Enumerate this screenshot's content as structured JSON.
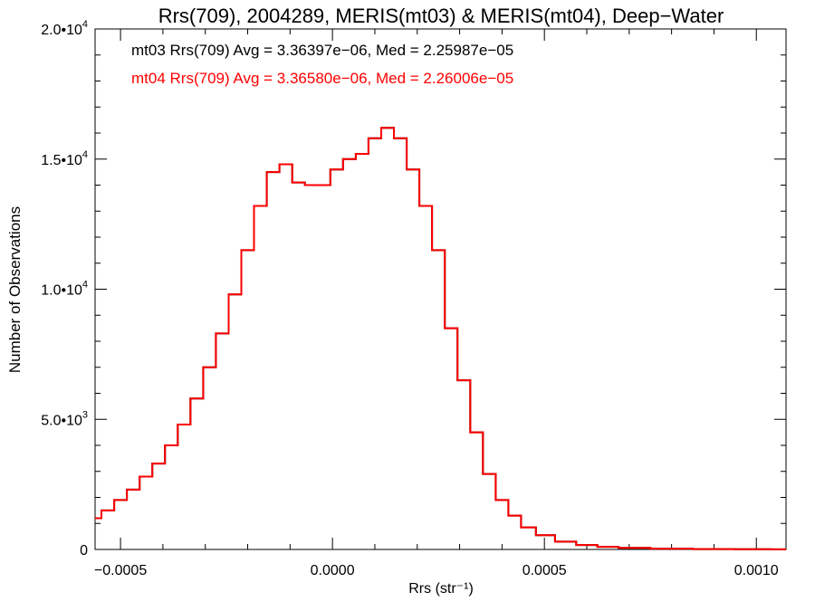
{
  "chart_data": {
    "type": "line",
    "style": "step-histogram",
    "title": "Rrs(709), 2004289, MERIS(mt03) & MERIS(mt04), Deep−Water",
    "xlabel": "Rrs (str⁻¹)",
    "ylabel": "Number of Observations",
    "xlim": [
      -0.00056,
      0.00107
    ],
    "ylim": [
      0,
      20000
    ],
    "x_ticks": [
      -0.0005,
      0.0,
      0.0005,
      0.001
    ],
    "x_tick_labels": [
      "−0.0005",
      "0.0000",
      "0.0005",
      "0.0010"
    ],
    "y_ticks": [
      0,
      5000,
      10000,
      15000,
      20000
    ],
    "y_tick_labels": [
      {
        "mantissa": "0",
        "exp": ""
      },
      {
        "mantissa": "5.0•10",
        "exp": "3"
      },
      {
        "mantissa": "1.0•10",
        "exp": "4"
      },
      {
        "mantissa": "1.5•10",
        "exp": "4"
      },
      {
        "mantissa": "2.0•10",
        "exp": "4"
      }
    ],
    "grid": false,
    "annotations": [
      {
        "text": "mt03 Rrs(709) Avg = 3.36397e−06, Med = 2.25987e−05",
        "color": "#000000"
      },
      {
        "text": "mt04 Rrs(709) Avg = 3.36580e−06, Med = 2.26006e−05",
        "color": "#ff0000"
      }
    ],
    "series": [
      {
        "color": "#000000",
        "x": [
          -0.00056,
          -0.00053,
          -0.0005,
          -0.00047,
          -0.00044,
          -0.00041,
          -0.00038,
          -0.00035,
          -0.00032,
          -0.00029,
          -0.00026,
          -0.00023,
          -0.0002,
          -0.00017,
          -0.00014,
          -0.00011,
          -8e-05,
          -5e-05,
          -2e-05,
          1e-05,
          4e-05,
          7e-05,
          0.0001,
          0.00013,
          0.00016,
          0.00019,
          0.00022,
          0.00025,
          0.00028,
          0.00031,
          0.00034,
          0.00037,
          0.0004,
          0.00043,
          0.00046,
          0.0005,
          0.00055,
          0.0006,
          0.00065,
          0.0007,
          0.0008,
          0.0009,
          0.001,
          0.00107
        ],
        "y": [
          1200,
          1500,
          1900,
          2300,
          2800,
          3300,
          4000,
          4800,
          5800,
          7000,
          8300,
          9800,
          11500,
          13200,
          14500,
          14800,
          14100,
          14000,
          14000,
          14600,
          15000,
          15200,
          15800,
          16200,
          15800,
          14600,
          13200,
          11500,
          8500,
          6500,
          4500,
          2900,
          1900,
          1300,
          850,
          550,
          300,
          170,
          100,
          60,
          30,
          15,
          8,
          5
        ]
      },
      {
        "color": "#ff0000",
        "x": [
          -0.00056,
          -0.00053,
          -0.0005,
          -0.00047,
          -0.00044,
          -0.00041,
          -0.00038,
          -0.00035,
          -0.00032,
          -0.00029,
          -0.00026,
          -0.00023,
          -0.0002,
          -0.00017,
          -0.00014,
          -0.00011,
          -8e-05,
          -5e-05,
          -2e-05,
          1e-05,
          4e-05,
          7e-05,
          0.0001,
          0.00013,
          0.00016,
          0.00019,
          0.00022,
          0.00025,
          0.00028,
          0.00031,
          0.00034,
          0.00037,
          0.0004,
          0.00043,
          0.00046,
          0.0005,
          0.00055,
          0.0006,
          0.00065,
          0.0007,
          0.0008,
          0.0009,
          0.001,
          0.00107
        ],
        "y": [
          1200,
          1500,
          1900,
          2300,
          2800,
          3300,
          4000,
          4800,
          5800,
          7000,
          8300,
          9800,
          11500,
          13200,
          14500,
          14800,
          14100,
          14000,
          14000,
          14600,
          15000,
          15200,
          15800,
          16200,
          15800,
          14600,
          13200,
          11500,
          8500,
          6500,
          4500,
          2900,
          1900,
          1300,
          850,
          550,
          300,
          170,
          100,
          60,
          30,
          15,
          8,
          5
        ]
      }
    ]
  }
}
